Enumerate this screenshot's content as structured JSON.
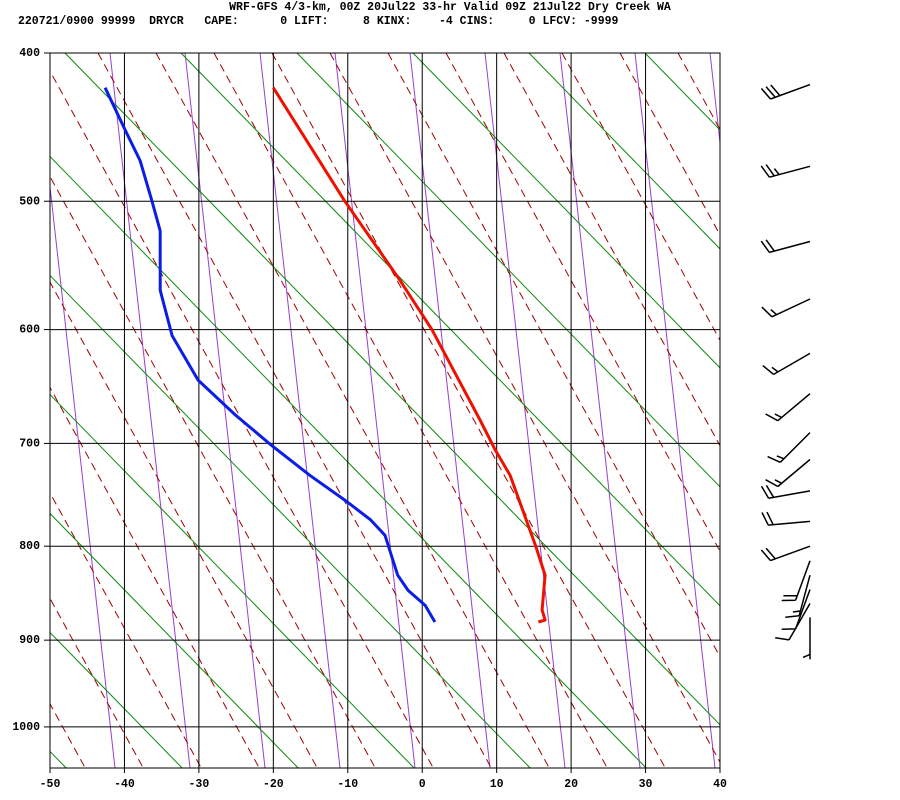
{
  "chart_data": {
    "type": "skewt",
    "title": "WRF-GFS 4/3-km, 00Z 20Jul22 33-hr Valid 09Z 21Jul22 Dry Creek WA",
    "subtitle": "220721/0900 99999  DRYCR   CAPE:      0 LIFT:     8 KINX:    -4 CINS:     0 LFCV: -9999",
    "xlim": [
      -50,
      40
    ],
    "xticks": [
      -50,
      -40,
      -30,
      -20,
      -10,
      0,
      10,
      20,
      30,
      40
    ],
    "ylim": [
      1050,
      400
    ],
    "yticks": [
      400,
      500,
      600,
      700,
      800,
      900,
      1000
    ],
    "yscale": "kappa",
    "grid": true,
    "series": [
      {
        "color": "#ee1100",
        "x": [
          -20.0,
          -10.4,
          -3.0,
          1.3,
          7.8,
          9.8,
          11.8,
          15.2,
          16.5,
          16.1,
          16.5,
          15.6
        ],
        "y": [
          422,
          500,
          560,
          600,
          679,
          706,
          730,
          799,
          830,
          867,
          878,
          880
        ]
      },
      {
        "color": "#0a1ee6",
        "x": [
          -42.6,
          -39.9,
          -37.9,
          -36.3,
          -35.2,
          -35.2,
          -35.2,
          -33.6,
          -30.1,
          -25.1,
          -20.2,
          -15.1,
          -10.4,
          -7.0,
          -5.0,
          -3.3,
          -1.9,
          0.4,
          1.7
        ],
        "y": [
          422,
          450,
          471,
          500,
          522,
          545,
          568,
          605,
          643,
          674,
          702,
          730,
          754,
          773,
          789,
          830,
          846,
          862,
          880
        ]
      }
    ],
    "winds": {
      "pressure": [
        420,
        475,
        530,
        575,
        620,
        655,
        690,
        715,
        745,
        775,
        800,
        815,
        830,
        845,
        860,
        875
      ],
      "direction": [
        250,
        255,
        255,
        245,
        240,
        230,
        225,
        230,
        260,
        265,
        250,
        200,
        195,
        200,
        210,
        180
      ],
      "speed": [
        30,
        25,
        20,
        15,
        15,
        15,
        15,
        15,
        20,
        20,
        20,
        20,
        15,
        10,
        10,
        5
      ]
    }
  }
}
